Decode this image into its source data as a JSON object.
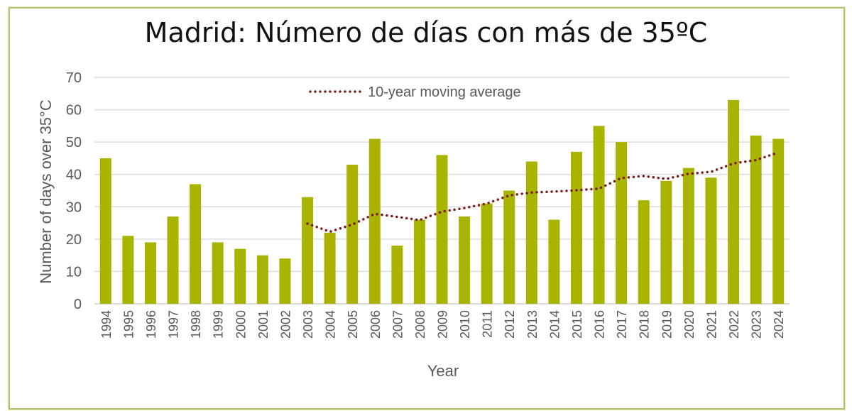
{
  "chart_data": {
    "type": "bar",
    "title": "Madrid: Número de días con más de 35ºC",
    "xlabel": "Year",
    "ylabel": "Number of days over 35°C",
    "ylim": [
      0,
      70
    ],
    "yticks": [
      0,
      10,
      20,
      30,
      40,
      50,
      60,
      70
    ],
    "grid": true,
    "legend_position": "top-center",
    "categories": [
      "1994",
      "1995",
      "1996",
      "1997",
      "1998",
      "1999",
      "2000",
      "2001",
      "2002",
      "2003",
      "2004",
      "2005",
      "2006",
      "2007",
      "2008",
      "2009",
      "2010",
      "2011",
      "2012",
      "2013",
      "2014",
      "2015",
      "2016",
      "2017",
      "2018",
      "2019",
      "2020",
      "2021",
      "2022",
      "2023",
      "2024"
    ],
    "values": [
      45,
      21,
      19,
      27,
      37,
      19,
      17,
      15,
      14,
      33,
      22,
      43,
      51,
      18,
      26,
      46,
      27,
      31,
      35,
      44,
      26,
      47,
      55,
      50,
      32,
      38,
      42,
      39,
      63,
      52,
      51
    ],
    "bar_color": "#a8b400",
    "moving_average": {
      "name": "10-year moving average",
      "color": "#7a1a1a",
      "style": "dotted",
      "categories": [
        "2003",
        "2004",
        "2005",
        "2006",
        "2007",
        "2008",
        "2009",
        "2010",
        "2011",
        "2012",
        "2013",
        "2014",
        "2015",
        "2016",
        "2017",
        "2018",
        "2019",
        "2020",
        "2021",
        "2022",
        "2023",
        "2024"
      ],
      "values": [
        24.8,
        22.3,
        24.5,
        27.8,
        26.9,
        25.9,
        28.5,
        29.6,
        31.0,
        33.5,
        34.4,
        34.7,
        35.1,
        35.6,
        38.9,
        39.5,
        38.6,
        40.2,
        40.8,
        43.4,
        44.4,
        46.8
      ]
    }
  }
}
